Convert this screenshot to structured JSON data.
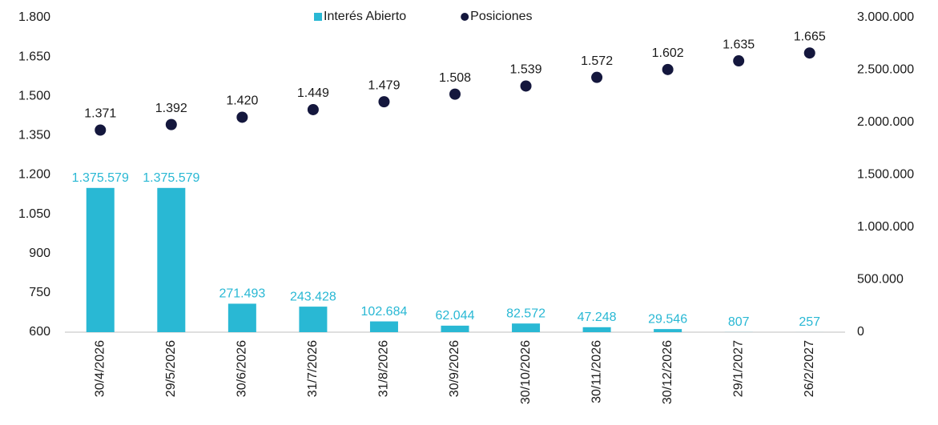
{
  "chart_data": {
    "type": "bar_dot",
    "categories": [
      "30/4/2026",
      "29/5/2026",
      "30/6/2026",
      "31/7/2026",
      "31/8/2026",
      "30/9/2026",
      "30/10/2026",
      "30/11/2026",
      "30/12/2026",
      "29/1/2027",
      "26/2/2027"
    ],
    "series": [
      {
        "name": "Interés Abierto",
        "color": "#29b8d4",
        "axis": "y2",
        "values": [
          1375579,
          1375579,
          271493,
          243428,
          102684,
          62044,
          82572,
          47248,
          29546,
          807,
          257
        ],
        "value_labels": [
          "1.375.579",
          "1.375.579",
          "271.493",
          "243.428",
          "102.684",
          "62.044",
          "82.572",
          "47.248",
          "29.546",
          "807",
          "257"
        ]
      },
      {
        "name": "Posiciones",
        "color": "#14173d",
        "axis": "y",
        "values": [
          1371,
          1392,
          1420,
          1449,
          1479,
          1508,
          1539,
          1572,
          1602,
          1635,
          1665
        ],
        "value_labels": [
          "1.371",
          "1.392",
          "1.420",
          "1.449",
          "1.479",
          "1.508",
          "1.539",
          "1.572",
          "1.602",
          "1.635",
          "1.665"
        ]
      }
    ],
    "ylim": [
      600,
      1800
    ],
    "yticks": [
      600,
      750,
      900,
      {
        "value": 1050,
        "label": "1.050"
      },
      {
        "value": 1200,
        "label": "1.200"
      },
      {
        "value": 1350,
        "label": "1.350"
      },
      {
        "value": 1500,
        "label": "1.500"
      },
      {
        "value": 1650,
        "label": "1.650"
      },
      {
        "value": 1800,
        "label": "1.800"
      }
    ],
    "y2lim": [
      0,
      3000000
    ],
    "y2ticks": [
      0,
      {
        "value": 500000,
        "label": "500.000"
      },
      {
        "value": 1000000,
        "label": "1.000.000"
      },
      {
        "value": 1500000,
        "label": "1.500.000"
      },
      {
        "value": 2000000,
        "label": "2.000.000"
      },
      {
        "value": 2500000,
        "label": "2.500.000"
      },
      {
        "value": 3000000,
        "label": "3.000.000"
      }
    ],
    "legend": "top"
  }
}
